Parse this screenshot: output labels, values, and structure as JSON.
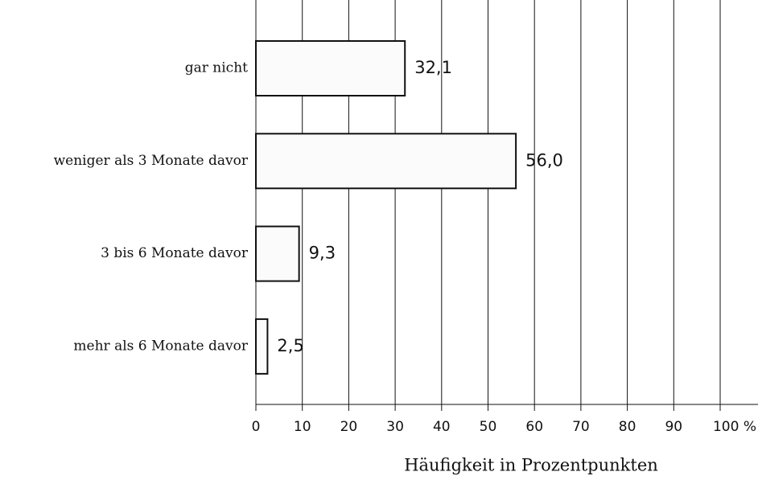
{
  "chart_data": {
    "type": "barh",
    "categories": [
      "gar nicht",
      "weniger als 3 Monate davor",
      "3 bis 6 Monate davor",
      "mehr als 6 Monate davor"
    ],
    "values": [
      32.1,
      56.0,
      9.3,
      2.5
    ],
    "value_labels": [
      "32,1",
      "56,0",
      "9,3",
      "2,5"
    ],
    "color": "#fbfbfb",
    "xlim": [
      0,
      100
    ],
    "xticks": [
      0,
      10,
      20,
      30,
      40,
      50,
      60,
      70,
      80,
      90,
      {
        "value": 100,
        "label": "100 %"
      }
    ],
    "xlabel": "Häufigkeit in Prozentpunkten",
    "grid": true
  }
}
